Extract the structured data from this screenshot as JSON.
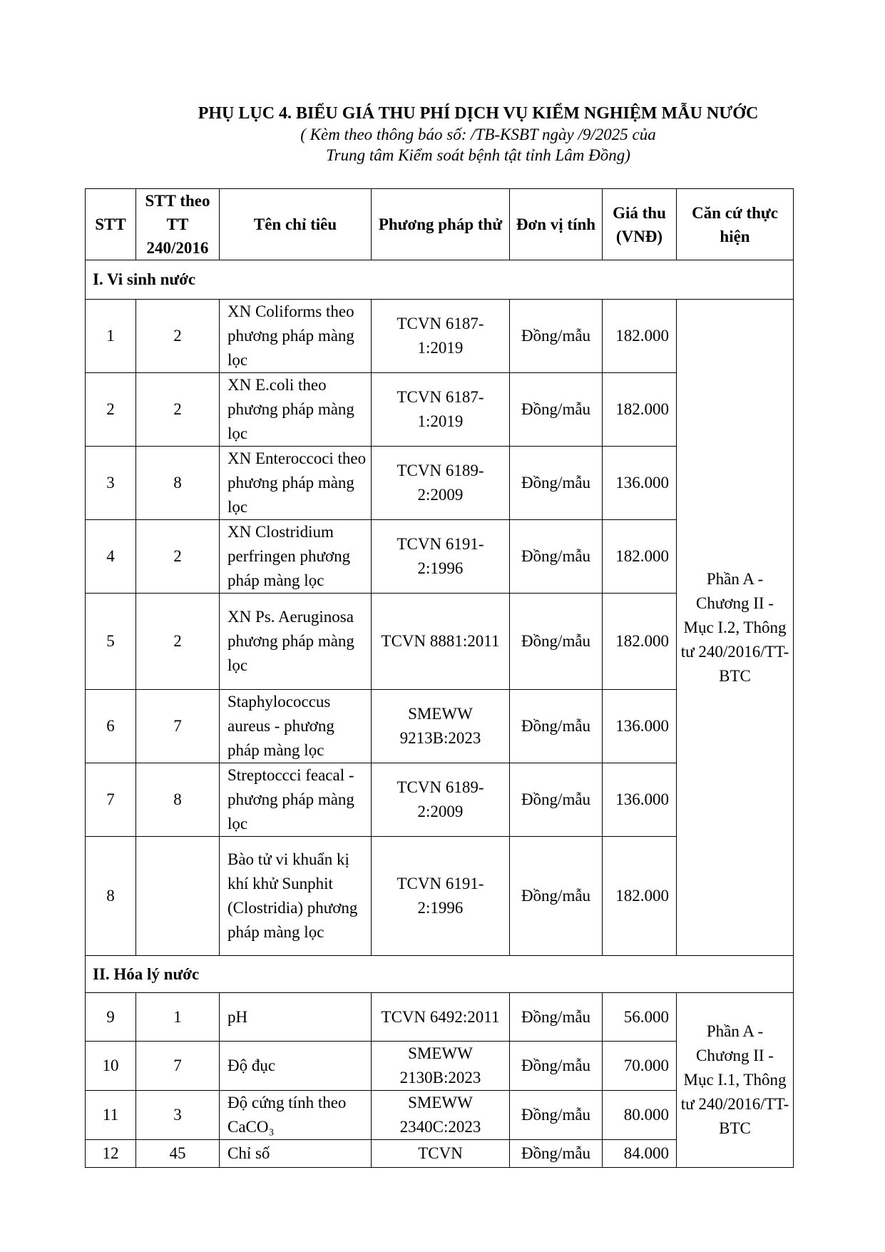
{
  "title": "PHỤ LỤC 4. BIỂU GIÁ THU PHÍ DỊCH VỤ KIỂM NGHIỆM MẪU NƯỚC",
  "subtitle_line1": "( Kèm theo thông báo số:            /TB-KSBT ngày       /9/2025 của",
  "subtitle_line2": "Trung tâm Kiểm soát bệnh tật tỉnh Lâm Đồng)",
  "headers": [
    "STT",
    "STT theo TT 240/2016",
    "Tên chỉ tiêu",
    "Phương pháp thử",
    "Đơn vị tính",
    "Giá thu (VNĐ)",
    "Căn cứ thực hiện"
  ],
  "sections": [
    {
      "title": "I. Vi sinh nước",
      "basis": "Phần A - Chương II - Mục I.2, Thông tư 240/2016/TT-BTC",
      "rows": [
        {
          "stt": "1",
          "tt": "2",
          "name": "XN Coliforms theo phương pháp màng lọc",
          "method": "TCVN 6187-1:2019",
          "unit": "Đồng/mẫu",
          "price": "182.000"
        },
        {
          "stt": "2",
          "tt": "2",
          "name": "XN E.coli theo phương pháp màng lọc",
          "method": "TCVN 6187-1:2019",
          "unit": "Đồng/mẫu",
          "price": "182.000"
        },
        {
          "stt": "3",
          "tt": "8",
          "name": "XN Enteroccoci theo phương pháp màng lọc",
          "method": "TCVN 6189-2:2009",
          "unit": "Đồng/mẫu",
          "price": "136.000"
        },
        {
          "stt": "4",
          "tt": "2",
          "name": "XN Clostridium perfringen phương pháp màng lọc",
          "method": "TCVN 6191-2:1996",
          "unit": "Đồng/mẫu",
          "price": "182.000"
        },
        {
          "stt": "5",
          "tt": "2",
          "name": "XN Ps. Aeruginosa phương pháp màng lọc",
          "method": "TCVN 8881:2011",
          "unit": "Đồng/mẫu",
          "price": "182.000"
        },
        {
          "stt": "6",
          "tt": "7",
          "name": "Staphylococcus aureus - phương pháp màng lọc",
          "method": "SMEWW 9213B:2023",
          "unit": "Đồng/mẫu",
          "price": "136.000"
        },
        {
          "stt": "7",
          "tt": "8",
          "name": "Streptoccci feacal - phương pháp màng lọc",
          "method": "TCVN 6189-2:2009",
          "unit": "Đồng/mẫu",
          "price": "136.000"
        },
        {
          "stt": "8",
          "tt": "",
          "name": "Bào tử vi khuẩn kị khí khử Sunphit (Clostridia) phương pháp màng lọc",
          "method": "TCVN 6191-2:1996",
          "unit": "Đồng/mẫu",
          "price": "182.000"
        }
      ]
    },
    {
      "title": "II. Hóa lý nước",
      "basis": "Phần A - Chương II - Mục I.1, Thông tư 240/2016/TT-BTC",
      "rows": [
        {
          "stt": "9",
          "tt": "1",
          "name": "pH",
          "method": "TCVN 6492:2011",
          "unit": "Đồng/mẫu",
          "price": "56.000"
        },
        {
          "stt": "10",
          "tt": "7",
          "name": "Độ đục",
          "method": "SMEWW 2130B:2023",
          "unit": "Đồng/mẫu",
          "price": "70.000"
        },
        {
          "stt": "11",
          "tt": "3",
          "name": "Độ cứng tính theo CaCO₃",
          "method": "SMEWW 2340C:2023",
          "unit": "Đồng/mẫu",
          "price": "80.000"
        },
        {
          "stt": "12",
          "tt": "45",
          "name": "Chỉ số",
          "method": "TCVN",
          "unit": "Đồng/mẫu",
          "price": "84.000"
        }
      ]
    }
  ]
}
